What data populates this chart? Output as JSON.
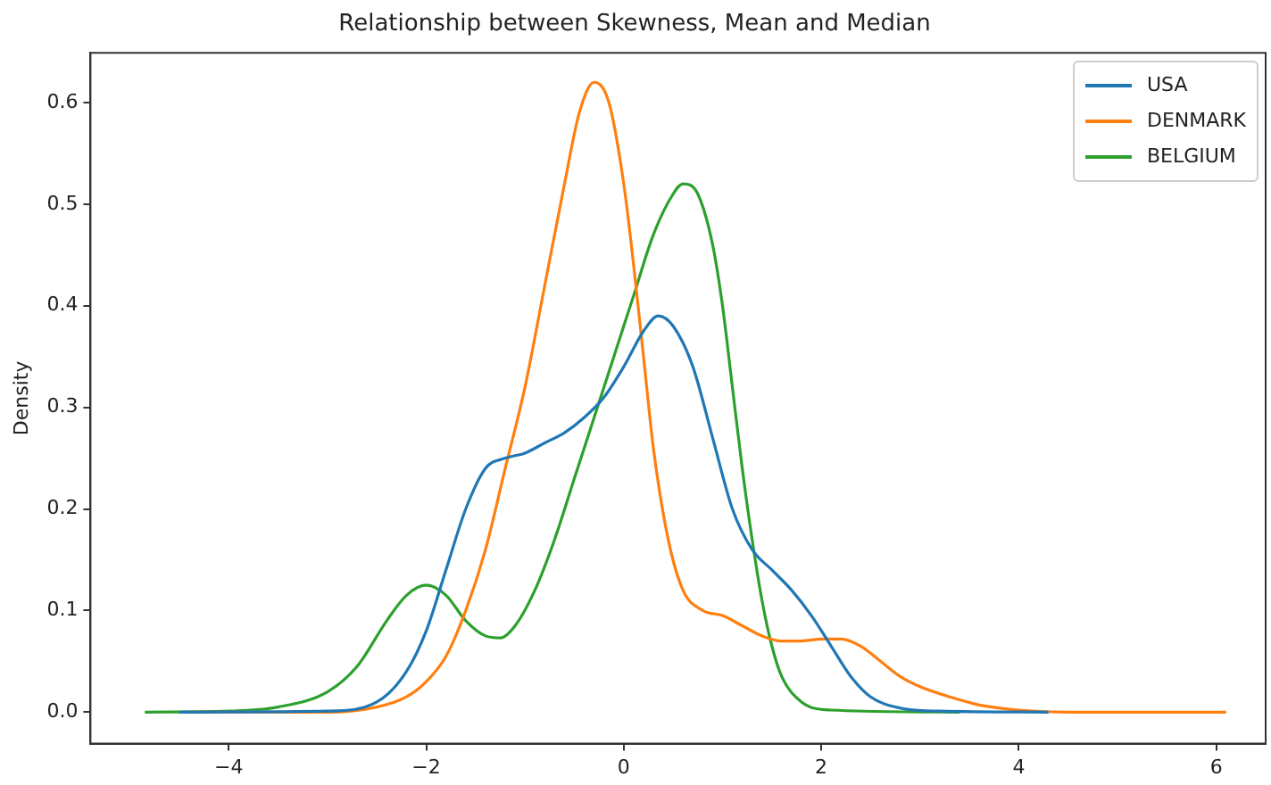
{
  "chart_data": {
    "type": "line",
    "title": "Relationship between Skewness, Mean and Median",
    "ylabel": "Density",
    "xlim": [
      -5.4,
      6.5
    ],
    "ylim": [
      -0.031,
      0.649
    ],
    "xticks": [
      {
        "value": -4,
        "label": "−4"
      },
      {
        "value": -2,
        "label": "−2"
      },
      0,
      2,
      4,
      6
    ],
    "yticks": [
      {
        "value": 0,
        "label": "0.0"
      },
      0.1,
      0.2,
      0.3,
      0.4,
      0.5,
      0.6
    ],
    "grid": false,
    "legend": "top right",
    "marker": "none",
    "line_style": "solid",
    "series": [
      {
        "name": "USA",
        "color": "#1f77b4",
        "x": [
          -4.5,
          -3,
          -2.5,
          -2.2,
          -2,
          -1.8,
          -1.6,
          -1.4,
          -1.2,
          -1,
          -0.8,
          -0.6,
          -0.4,
          -0.2,
          0,
          0.2,
          0.35,
          0.5,
          0.7,
          0.9,
          1.1,
          1.3,
          1.5,
          1.7,
          1.9,
          2.1,
          2.3,
          2.5,
          2.8,
          3.2,
          4.3
        ],
        "values": [
          0,
          0.001,
          0.01,
          0.04,
          0.08,
          0.14,
          0.2,
          0.24,
          0.25,
          0.255,
          0.265,
          0.275,
          0.29,
          0.31,
          0.34,
          0.375,
          0.39,
          0.38,
          0.34,
          0.27,
          0.2,
          0.16,
          0.14,
          0.12,
          0.095,
          0.065,
          0.035,
          0.015,
          0.004,
          0.001,
          0
        ]
      },
      {
        "name": "DENMARK",
        "color": "#ff7f0e",
        "x": [
          -4.4,
          -3,
          -2.5,
          -2.2,
          -2,
          -1.8,
          -1.6,
          -1.4,
          -1.2,
          -1,
          -0.8,
          -0.6,
          -0.45,
          -0.3,
          -0.15,
          0,
          0.1,
          0.2,
          0.3,
          0.45,
          0.6,
          0.8,
          1,
          1.2,
          1.4,
          1.6,
          1.8,
          2,
          2.2,
          2.4,
          2.6,
          2.8,
          3,
          3.3,
          3.6,
          4,
          4.5,
          6.1
        ],
        "values": [
          0,
          0,
          0.005,
          0.015,
          0.03,
          0.055,
          0.1,
          0.16,
          0.24,
          0.32,
          0.42,
          0.52,
          0.59,
          0.62,
          0.6,
          0.52,
          0.44,
          0.35,
          0.26,
          0.17,
          0.12,
          0.1,
          0.095,
          0.085,
          0.075,
          0.07,
          0.07,
          0.072,
          0.072,
          0.065,
          0.05,
          0.035,
          0.025,
          0.015,
          0.007,
          0.002,
          0,
          0
        ]
      },
      {
        "name": "BELGIUM",
        "color": "#2ca02c",
        "x": [
          -4.85,
          -4,
          -3.5,
          -3,
          -2.7,
          -2.4,
          -2.2,
          -2,
          -1.8,
          -1.6,
          -1.4,
          -1.25,
          -1.1,
          -0.9,
          -0.7,
          -0.5,
          -0.3,
          -0.1,
          0.1,
          0.3,
          0.5,
          0.6,
          0.75,
          0.9,
          1,
          1.1,
          1.2,
          1.3,
          1.4,
          1.5,
          1.6,
          1.8,
          2.1,
          3.4
        ],
        "values": [
          0,
          0.001,
          0.005,
          0.02,
          0.045,
          0.09,
          0.115,
          0.125,
          0.115,
          0.09,
          0.075,
          0.073,
          0.085,
          0.12,
          0.17,
          0.23,
          0.29,
          0.35,
          0.41,
          0.47,
          0.51,
          0.52,
          0.51,
          0.46,
          0.4,
          0.32,
          0.24,
          0.17,
          0.11,
          0.065,
          0.035,
          0.01,
          0.002,
          0
        ]
      }
    ]
  }
}
